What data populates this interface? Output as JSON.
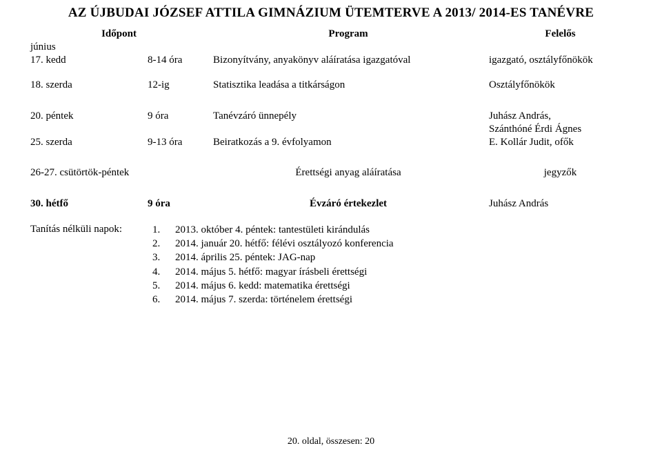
{
  "title": "AZ ÚJBUDAI JÓZSEF ATTILA GIMNÁZIUM ÜTEMTERVE A 2013/ 2014-ES TANÉVRE",
  "header": {
    "c1": "Időpont",
    "c3": "Program",
    "c4": "Felelős"
  },
  "month": "június",
  "rows": [
    {
      "day": "17. kedd",
      "time": "8-14 óra",
      "program": "Bizonyítvány, anyakönyv aláíratása igazgatóval",
      "resp": "igazgató, osztályfőnökök"
    },
    {
      "day": "18. szerda",
      "time": "12-ig",
      "program": "Statisztika leadása a titkárságon",
      "resp": "Osztályfőnökök"
    },
    {
      "day": "20. péntek",
      "time": "9 óra",
      "program": "Tanévzáró ünnepély",
      "resp": "Juhász András,",
      "resp2": "Szánthóné Érdi Ágnes"
    },
    {
      "day": "25. szerda",
      "time": "9-13 óra",
      "program": "Beiratkozás a 9. évfolyamon",
      "resp": "E. Kollár Judit, ofők"
    },
    {
      "day": "26-27. csütörtök-péntek",
      "time": "",
      "program": "Érettségi anyag aláíratása",
      "resp": "jegyzők"
    },
    {
      "day": "30. hétfő",
      "time": "9 óra",
      "program": "Évzáró értekezlet",
      "resp": "Juhász András",
      "bold": true
    }
  ],
  "notes_label": "Tanítás nélküli napok:",
  "notes": [
    "2013. október 4. péntek: tantestületi kirándulás",
    "2014. január 20. hétfő: félévi osztályozó konferencia",
    "2014. április 25. péntek: JAG-nap",
    "2014. május 5. hétfő: magyar írásbeli érettségi",
    "2014. május 6. kedd: matematika érettségi",
    "2014. május 7. szerda: történelem érettségi"
  ],
  "footer": "20. oldal, összesen: 20"
}
